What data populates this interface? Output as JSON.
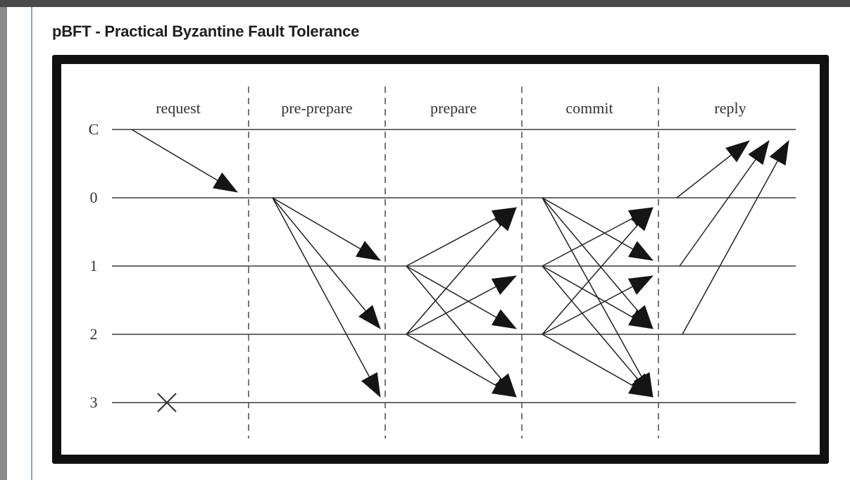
{
  "page": {
    "title": "pBFT - Practical Byzantine Fault Tolerance"
  },
  "diagram": {
    "phases": [
      "request",
      "pre-prepare",
      "prepare",
      "commit",
      "reply"
    ],
    "nodes": [
      "C",
      "0",
      "1",
      "2",
      "3"
    ],
    "faulty_node": "3",
    "messages": [
      {
        "phase": "request",
        "from": "C",
        "to": [
          "0"
        ]
      },
      {
        "phase": "pre-prepare",
        "from": "0",
        "to": [
          "1",
          "2",
          "3"
        ]
      },
      {
        "phase": "prepare",
        "from": "1",
        "to": [
          "0",
          "2",
          "3"
        ]
      },
      {
        "phase": "prepare",
        "from": "2",
        "to": [
          "0",
          "1",
          "3"
        ]
      },
      {
        "phase": "commit",
        "from": "0",
        "to": [
          "1",
          "2",
          "3"
        ]
      },
      {
        "phase": "commit",
        "from": "1",
        "to": [
          "0",
          "2",
          "3"
        ]
      },
      {
        "phase": "commit",
        "from": "2",
        "to": [
          "0",
          "1",
          "3"
        ]
      },
      {
        "phase": "reply",
        "from": "0",
        "to": [
          "C"
        ]
      },
      {
        "phase": "reply",
        "from": "1",
        "to": [
          "C"
        ]
      },
      {
        "phase": "reply",
        "from": "2",
        "to": [
          "C"
        ]
      }
    ]
  }
}
